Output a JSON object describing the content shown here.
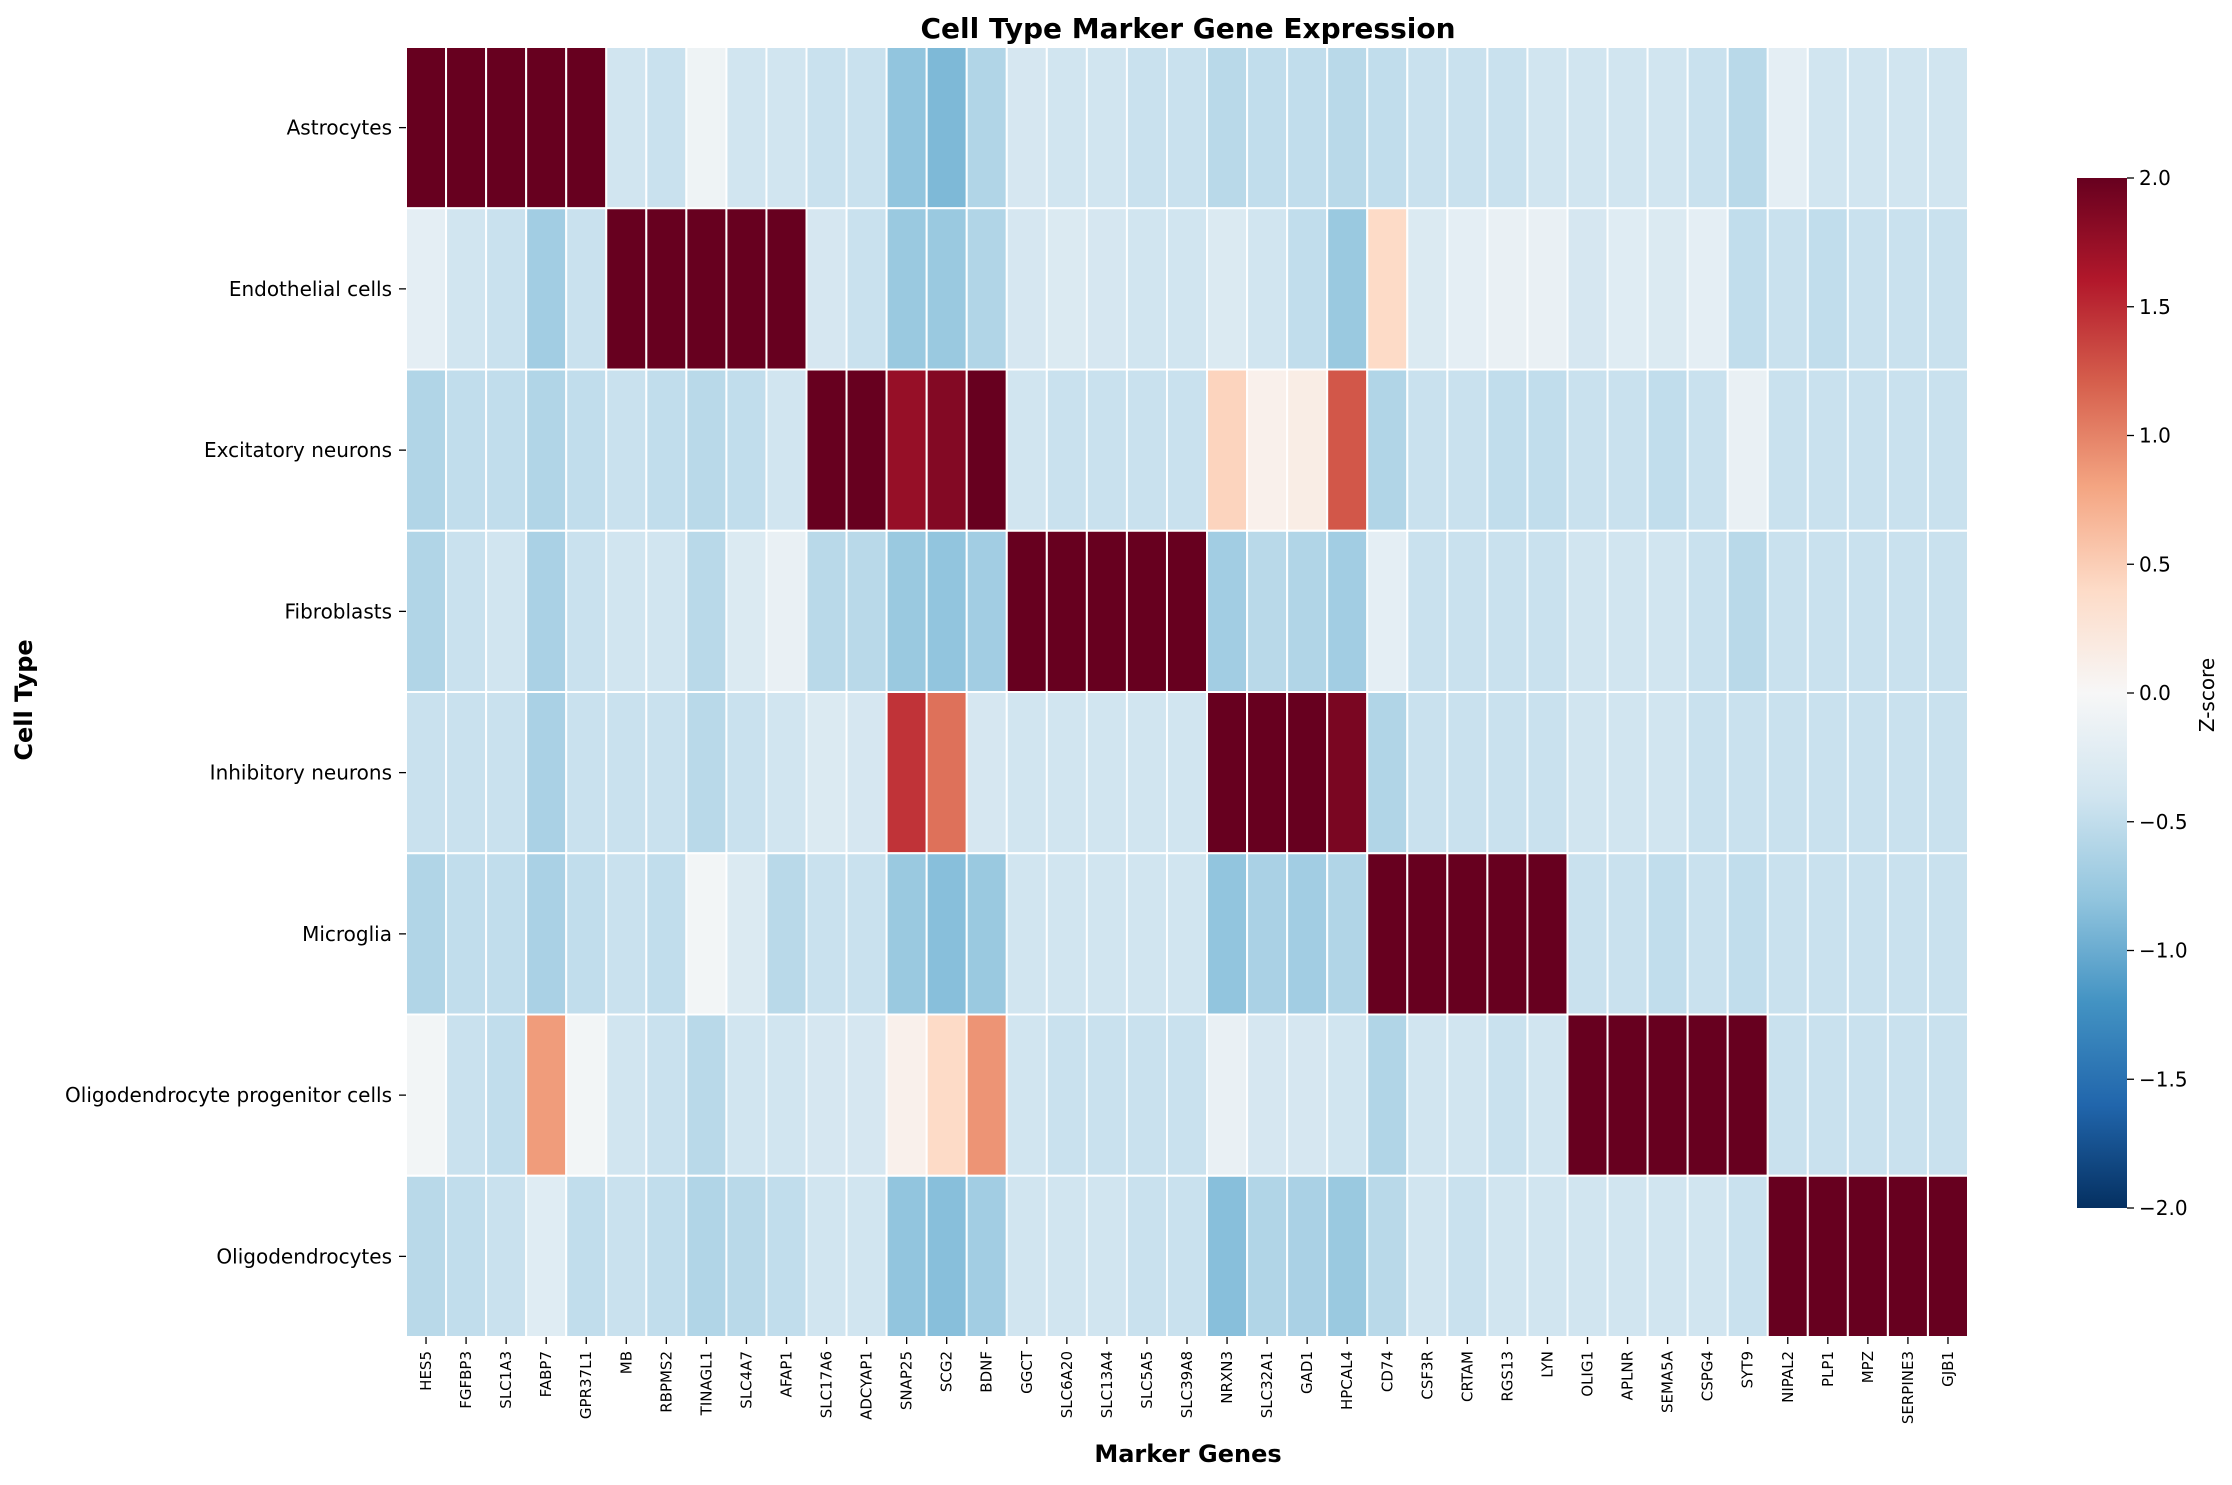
{
  "chart_data": {
    "type": "heatmap",
    "title": "Cell Type Marker Gene Expression",
    "xlabel": "Marker Genes",
    "ylabel": "Cell Type",
    "colorbar_label": "Z-score",
    "colormap": "RdBu_r",
    "vmin": -2.0,
    "vmax": 2.0,
    "colorbar_ticks": [
      "2.0",
      "1.5",
      "1.0",
      "0.5",
      "0.0",
      "−0.5",
      "−1.0",
      "−1.5",
      "−2.0"
    ],
    "colorbar_tick_values": [
      2.0,
      1.5,
      1.0,
      0.5,
      0.0,
      -0.5,
      -1.0,
      -1.5,
      -2.0
    ],
    "rows": [
      "Astrocytes",
      "Endothelial cells",
      "Excitatory neurons",
      "Fibroblasts",
      "Inhibitory neurons",
      "Microglia",
      "Oligodendrocyte progenitor cells",
      "Oligodendrocytes"
    ],
    "columns": [
      "HES5",
      "FGFBP3",
      "SLC1A3",
      "FABP7",
      "GPR37L1",
      "MB",
      "RBPMS2",
      "TINAGL1",
      "SLC4A7",
      "AFAP1",
      "SLC17A6",
      "ADCYAP1",
      "SNAP25",
      "SCG2",
      "BDNF",
      "GGCT",
      "SLC6A20",
      "SLC13A4",
      "SLC5A5",
      "SLC39A8",
      "NRXN3",
      "SLC32A1",
      "GAD1",
      "HPCAL4",
      "CD74",
      "CSF3R",
      "CRTAM",
      "RGS13",
      "LYN",
      "OLIG1",
      "APLNR",
      "SEMA5A",
      "CSPG4",
      "SYT9",
      "NIPAL2",
      "PLP1",
      "MPZ",
      "SERPINE3",
      "GJB1"
    ],
    "values": [
      [
        2.8,
        2.7,
        2.8,
        2.7,
        2.6,
        -0.4,
        -0.45,
        -0.1,
        -0.4,
        -0.4,
        -0.45,
        -0.45,
        -0.8,
        -0.9,
        -0.6,
        -0.35,
        -0.4,
        -0.4,
        -0.45,
        -0.45,
        -0.55,
        -0.5,
        -0.5,
        -0.55,
        -0.5,
        -0.45,
        -0.45,
        -0.45,
        -0.4,
        -0.4,
        -0.4,
        -0.4,
        -0.45,
        -0.55,
        -0.2,
        -0.4,
        -0.4,
        -0.4,
        -0.4
      ],
      [
        -0.2,
        -0.4,
        -0.45,
        -0.7,
        -0.45,
        2.8,
        2.7,
        2.8,
        2.7,
        2.6,
        -0.35,
        -0.45,
        -0.75,
        -0.75,
        -0.6,
        -0.35,
        -0.3,
        -0.35,
        -0.4,
        -0.4,
        -0.3,
        -0.4,
        -0.5,
        -0.75,
        0.4,
        -0.3,
        -0.2,
        -0.15,
        -0.15,
        -0.35,
        -0.25,
        -0.3,
        -0.2,
        -0.5,
        -0.45,
        -0.5,
        -0.45,
        -0.45,
        -0.45
      ],
      [
        -0.6,
        -0.5,
        -0.5,
        -0.6,
        -0.5,
        -0.45,
        -0.5,
        -0.55,
        -0.5,
        -0.4,
        2.6,
        2.5,
        1.75,
        1.85,
        2.0,
        -0.4,
        -0.45,
        -0.45,
        -0.45,
        -0.45,
        0.45,
        0.1,
        0.15,
        1.25,
        -0.6,
        -0.45,
        -0.45,
        -0.5,
        -0.5,
        -0.45,
        -0.45,
        -0.5,
        -0.45,
        -0.15,
        -0.45,
        -0.45,
        -0.45,
        -0.45,
        -0.45
      ],
      [
        -0.6,
        -0.45,
        -0.4,
        -0.65,
        -0.45,
        -0.4,
        -0.4,
        -0.55,
        -0.3,
        -0.15,
        -0.55,
        -0.55,
        -0.75,
        -0.8,
        -0.7,
        2.8,
        2.7,
        2.8,
        2.7,
        2.6,
        -0.7,
        -0.55,
        -0.6,
        -0.7,
        -0.2,
        -0.45,
        -0.45,
        -0.45,
        -0.45,
        -0.4,
        -0.4,
        -0.4,
        -0.45,
        -0.55,
        -0.45,
        -0.45,
        -0.45,
        -0.45,
        -0.45
      ],
      [
        -0.45,
        -0.45,
        -0.45,
        -0.65,
        -0.45,
        -0.45,
        -0.45,
        -0.55,
        -0.45,
        -0.4,
        -0.3,
        -0.35,
        1.45,
        1.1,
        -0.35,
        -0.4,
        -0.4,
        -0.4,
        -0.4,
        -0.4,
        2.3,
        2.4,
        2.2,
        1.9,
        -0.6,
        -0.45,
        -0.45,
        -0.45,
        -0.45,
        -0.4,
        -0.4,
        -0.4,
        -0.45,
        -0.45,
        -0.45,
        -0.45,
        -0.45,
        -0.45,
        -0.45
      ],
      [
        -0.6,
        -0.5,
        -0.5,
        -0.65,
        -0.5,
        -0.45,
        -0.5,
        -0.05,
        -0.3,
        -0.55,
        -0.45,
        -0.45,
        -0.75,
        -0.85,
        -0.75,
        -0.4,
        -0.4,
        -0.4,
        -0.4,
        -0.4,
        -0.8,
        -0.65,
        -0.7,
        -0.6,
        2.8,
        2.7,
        2.8,
        2.7,
        2.6,
        -0.45,
        -0.45,
        -0.5,
        -0.45,
        -0.5,
        -0.45,
        -0.45,
        -0.45,
        -0.45,
        -0.45
      ],
      [
        -0.05,
        -0.45,
        -0.5,
        0.85,
        -0.05,
        -0.4,
        -0.45,
        -0.55,
        -0.4,
        -0.4,
        -0.35,
        -0.35,
        0.1,
        0.4,
        0.9,
        -0.4,
        -0.45,
        -0.45,
        -0.45,
        -0.45,
        -0.15,
        -0.35,
        -0.35,
        -0.4,
        -0.6,
        -0.4,
        -0.4,
        -0.45,
        -0.4,
        2.6,
        2.5,
        2.3,
        2.4,
        2.5,
        -0.45,
        -0.45,
        -0.45,
        -0.45,
        -0.45
      ],
      [
        -0.55,
        -0.5,
        -0.45,
        -0.25,
        -0.5,
        -0.45,
        -0.5,
        -0.6,
        -0.55,
        -0.5,
        -0.4,
        -0.4,
        -0.8,
        -0.85,
        -0.7,
        -0.4,
        -0.4,
        -0.4,
        -0.45,
        -0.45,
        -0.85,
        -0.6,
        -0.65,
        -0.75,
        -0.55,
        -0.4,
        -0.45,
        -0.4,
        -0.4,
        -0.4,
        -0.4,
        -0.4,
        -0.4,
        -0.45,
        2.8,
        2.7,
        2.8,
        2.7,
        2.6
      ]
    ]
  }
}
